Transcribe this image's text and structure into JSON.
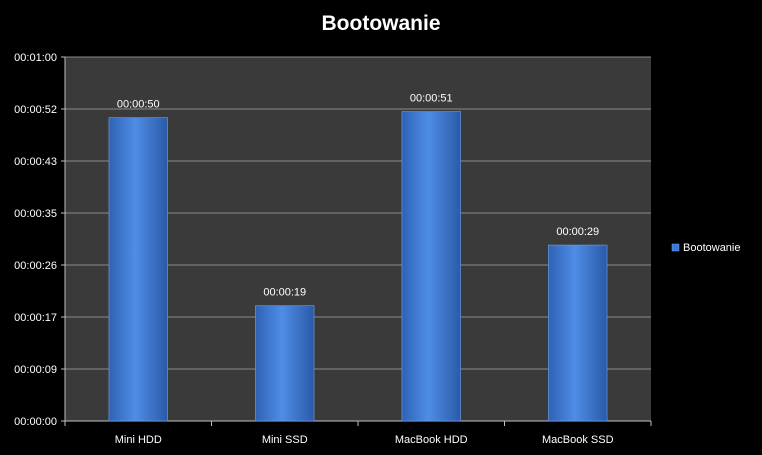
{
  "chart_data": {
    "type": "bar",
    "title": "Bootowanie",
    "categories": [
      "Mini HDD",
      "Mini SSD",
      "MacBook HDD",
      "MacBook SSD"
    ],
    "series": [
      {
        "name": "Bootowanie",
        "values": [
          50,
          19,
          51,
          29
        ],
        "data_labels": [
          "00:00:50",
          "00:00:19",
          "00:00:51",
          "00:00:29"
        ],
        "color": "#3c78d0"
      }
    ],
    "y_ticks": [
      "00:00:00",
      "00:00:09",
      "00:00:17",
      "00:00:26",
      "00:00:35",
      "00:00:43",
      "00:00:52",
      "00:01:00"
    ],
    "ylim": [
      0,
      60
    ],
    "y_unit": "seconds",
    "grid": true,
    "legend_position": "right",
    "plot_background": "#3a3a3a",
    "page_background": "#000000"
  }
}
